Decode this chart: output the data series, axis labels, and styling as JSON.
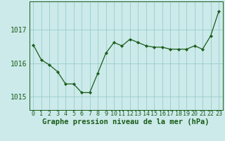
{
  "x": [
    0,
    1,
    2,
    3,
    4,
    5,
    6,
    7,
    8,
    9,
    10,
    11,
    12,
    13,
    14,
    15,
    16,
    17,
    18,
    19,
    20,
    21,
    22,
    23
  ],
  "y": [
    1016.55,
    1016.1,
    1015.95,
    1015.75,
    1015.38,
    1015.38,
    1015.12,
    1015.12,
    1015.7,
    1016.3,
    1016.62,
    1016.52,
    1016.72,
    1016.62,
    1016.52,
    1016.48,
    1016.48,
    1016.42,
    1016.42,
    1016.42,
    1016.52,
    1016.42,
    1016.82,
    1017.55
  ],
  "line_color": "#1a5c1a",
  "marker_color": "#1a5c1a",
  "bg_color": "#cceaea",
  "grid_color": "#99cccc",
  "xlabel": "Graphe pression niveau de la mer (hPa)",
  "yticks": [
    1015,
    1016,
    1017
  ],
  "ylim": [
    1014.6,
    1017.85
  ],
  "xlim": [
    -0.5,
    23.5
  ],
  "xlabel_fontsize": 7.5,
  "tick_fontsize": 6.0,
  "ytick_fontsize": 7.0
}
